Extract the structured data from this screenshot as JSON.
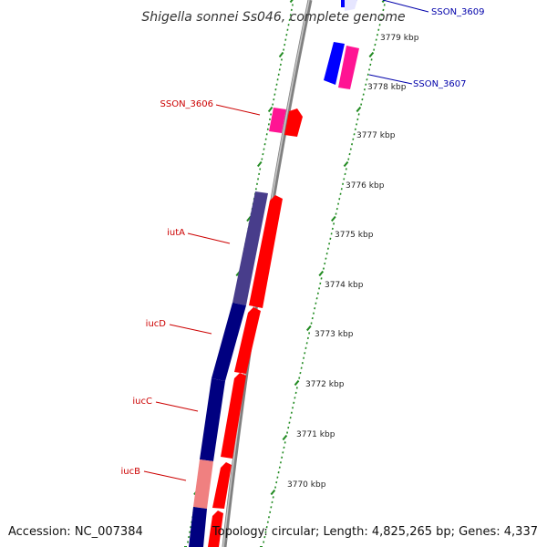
{
  "title": "Shigella sonnei Ss046, complete genome",
  "footer": {
    "accession": "Accession: NC_007384",
    "summary": "Topology: circular; Length: 4,825,265 bp; Genes: 4,337"
  },
  "colors": {
    "forward_gene": "#ff0000",
    "reverse_gene": "#0000ff",
    "operon_gene": "#000080",
    "iutA_gene": "#483d8b",
    "iucB_gene": "#f08080",
    "pseudo_gene": "#ff1493",
    "tick": "#228b22",
    "backbone": "#808080",
    "label_forward": "#cc0000",
    "label_reverse": "#0000aa"
  },
  "ruler": {
    "unit": "kbp",
    "labels": [
      "3779 kbp",
      "3778 kbp",
      "3777 kbp",
      "3776 kbp",
      "3775 kbp",
      "3774 kbp",
      "3773 kbp",
      "3772 kbp",
      "3771 kbp",
      "3770 kbp"
    ]
  },
  "gene_labels": [
    {
      "id": "SSON_3609",
      "text": "SSON_3609",
      "strand": "reverse"
    },
    {
      "id": "SSON_3607",
      "text": "SSON_3607",
      "strand": "reverse"
    },
    {
      "id": "SSON_3606",
      "text": "SSON_3606",
      "strand": "forward"
    },
    {
      "id": "iutA",
      "text": "iutA",
      "strand": "forward"
    },
    {
      "id": "iucD",
      "text": "iucD",
      "strand": "forward"
    },
    {
      "id": "iucC",
      "text": "iucC",
      "strand": "forward"
    },
    {
      "id": "iucB",
      "text": "iucB",
      "strand": "forward"
    }
  ]
}
